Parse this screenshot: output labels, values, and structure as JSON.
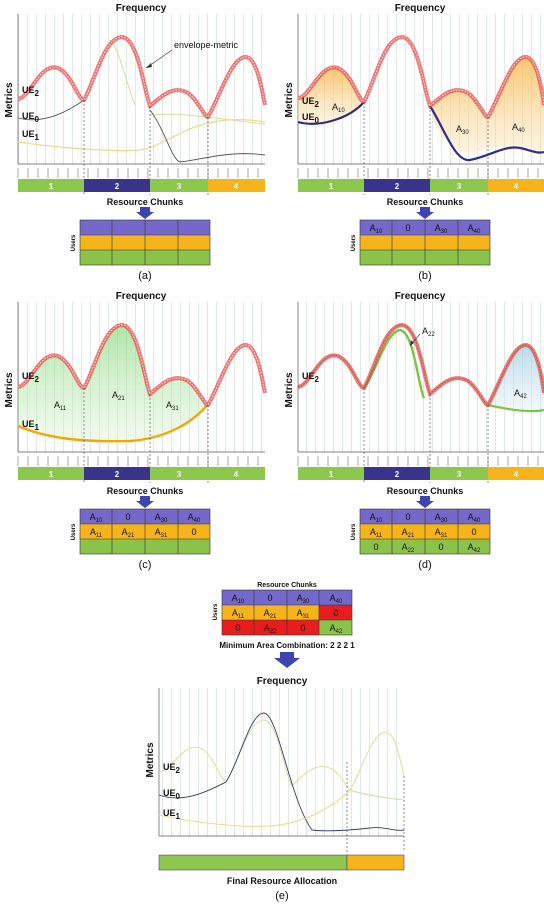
{
  "panels": {
    "a": {
      "title": "Frequency",
      "ylabel": "Metrics",
      "annotation": "envelope-metric",
      "chunks_title": "Resource Chunks",
      "users_label": "Users",
      "caption": "(a)",
      "band": [
        "1",
        "2",
        "3",
        "4"
      ],
      "ue": [
        {
          "b": "UE",
          "s": "2"
        },
        {
          "b": "UE",
          "s": "0"
        },
        {
          "b": "UE",
          "s": "1"
        }
      ],
      "table": [
        [
          "",
          "",
          "",
          ""
        ],
        [
          "",
          "",
          "",
          ""
        ],
        [
          "",
          "",
          "",
          ""
        ]
      ]
    },
    "b": {
      "title": "Frequency",
      "ylabel": "Metrics",
      "chunks_title": "Resource Chunks",
      "users_label": "Users",
      "caption": "(b)",
      "band": [
        "1",
        "2",
        "3",
        "4"
      ],
      "ue": [
        {
          "b": "UE",
          "s": "2"
        },
        {
          "b": "UE",
          "s": "0"
        }
      ],
      "areas": [
        {
          "b": "A",
          "s": "10"
        },
        {
          "b": "A",
          "s": "30"
        },
        {
          "b": "A",
          "s": "40"
        }
      ],
      "table": [
        [
          {
            "b": "A",
            "s": "10"
          },
          {
            "b": "0",
            "s": ""
          },
          {
            "b": "A",
            "s": "30"
          },
          {
            "b": "A",
            "s": "40"
          }
        ],
        [
          "",
          "",
          "",
          ""
        ],
        [
          "",
          "",
          "",
          ""
        ]
      ]
    },
    "c": {
      "title": "Frequency",
      "ylabel": "Metrics",
      "chunks_title": "Resource Chunks",
      "users_label": "Users",
      "caption": "(c)",
      "band": [
        "1",
        "2",
        "3",
        "4"
      ],
      "ue": [
        {
          "b": "UE",
          "s": "2"
        },
        {
          "b": "UE",
          "s": "1"
        }
      ],
      "areas": [
        {
          "b": "A",
          "s": "11"
        },
        {
          "b": "A",
          "s": "21"
        },
        {
          "b": "A",
          "s": "31"
        }
      ],
      "table": [
        [
          {
            "b": "A",
            "s": "10"
          },
          {
            "b": "0",
            "s": ""
          },
          {
            "b": "A",
            "s": "30"
          },
          {
            "b": "A",
            "s": "40"
          }
        ],
        [
          {
            "b": "A",
            "s": "11"
          },
          {
            "b": "A",
            "s": "21"
          },
          {
            "b": "A",
            "s": "31"
          },
          {
            "b": "0",
            "s": ""
          }
        ],
        [
          "",
          "",
          "",
          ""
        ]
      ]
    },
    "d": {
      "title": "Frequency",
      "ylabel": "Metrics",
      "chunks_title": "Resource Chunks",
      "users_label": "Users",
      "caption": "(d)",
      "band": [
        "1",
        "2",
        "3",
        "4"
      ],
      "ue": [
        {
          "b": "UE",
          "s": "2"
        }
      ],
      "areas": [
        {
          "b": "A",
          "s": "22"
        },
        {
          "b": "A",
          "s": "42"
        }
      ],
      "table": [
        [
          {
            "b": "A",
            "s": "10"
          },
          {
            "b": "0",
            "s": ""
          },
          {
            "b": "A",
            "s": "30"
          },
          {
            "b": "A",
            "s": "40"
          }
        ],
        [
          {
            "b": "A",
            "s": "11"
          },
          {
            "b": "A",
            "s": "21"
          },
          {
            "b": "A",
            "s": "31"
          },
          {
            "b": "0",
            "s": ""
          }
        ],
        [
          {
            "b": "0",
            "s": ""
          },
          {
            "b": "A",
            "s": "22"
          },
          {
            "b": "0",
            "s": ""
          },
          {
            "b": "A",
            "s": "42"
          }
        ]
      ]
    },
    "combo": {
      "chunks_title": "Resource Chunks",
      "users_label": "Users",
      "table": [
        [
          {
            "b": "A",
            "s": "10"
          },
          {
            "b": "0",
            "s": ""
          },
          {
            "b": "A",
            "s": "30"
          },
          {
            "b": "A",
            "s": "40"
          }
        ],
        [
          {
            "b": "A",
            "s": "11"
          },
          {
            "b": "A",
            "s": "21"
          },
          {
            "b": "A",
            "s": "31"
          },
          {
            "b": "0",
            "s": ""
          }
        ],
        [
          {
            "b": "0",
            "s": ""
          },
          {
            "b": "A",
            "s": "22"
          },
          {
            "b": "0",
            "s": ""
          },
          {
            "b": "A",
            "s": "42"
          }
        ]
      ],
      "min_label": "Minimum Area Combination: 2 2 2 1"
    },
    "e": {
      "title": "Frequency",
      "ylabel": "Metrics",
      "ue": [
        {
          "b": "UE",
          "s": "2"
        },
        {
          "b": "UE",
          "s": "0"
        },
        {
          "b": "UE",
          "s": "1"
        }
      ],
      "final_label": "Final Resource Allocation",
      "caption": "(e)"
    }
  },
  "colors": {
    "green": "#8DC84E",
    "navy": "#3A3389",
    "orange": "#F5B41C",
    "purple": "#7468C9",
    "red": "#E81D1D",
    "envelope": "#E84A4A",
    "ue0": "#3B3970",
    "ue1": "#F1D88E",
    "ue2": "#D6DE9A",
    "chunk_green": "#8BC34A"
  }
}
